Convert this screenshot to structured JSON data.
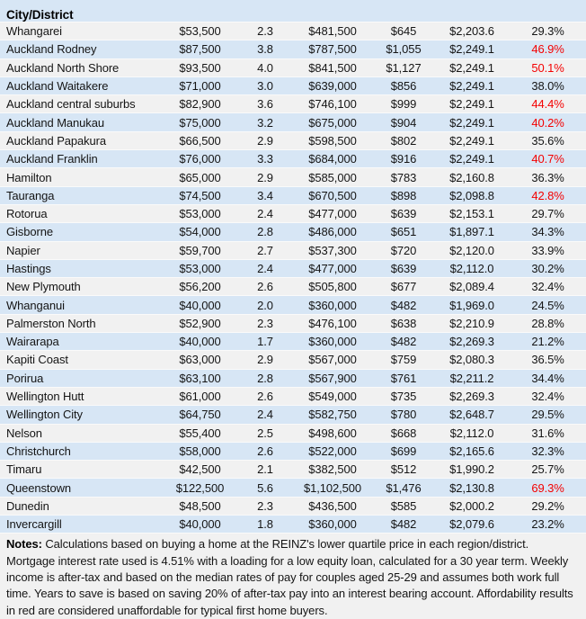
{
  "colors": {
    "row_blue": "#d7e6f5",
    "row_grey": "#f1f1f1",
    "unaffordable_red": "#f40000",
    "text": "#151515"
  },
  "chart_data": {
    "type": "table",
    "header": {
      "city_label": "City/District"
    },
    "rows": [
      {
        "city": "Whangarei",
        "values": [
          "$53,500",
          "2.3",
          "$481,500",
          "$645",
          "$2,203.6",
          "29.3%"
        ],
        "unaffordable": false
      },
      {
        "city": "Auckland Rodney",
        "values": [
          "$87,500",
          "3.8",
          "$787,500",
          "$1,055",
          "$2,249.1",
          "46.9%"
        ],
        "unaffordable": true
      },
      {
        "city": "Auckland North Shore",
        "values": [
          "$93,500",
          "4.0",
          "$841,500",
          "$1,127",
          "$2,249.1",
          "50.1%"
        ],
        "unaffordable": true
      },
      {
        "city": "Auckland Waitakere",
        "values": [
          "$71,000",
          "3.0",
          "$639,000",
          "$856",
          "$2,249.1",
          "38.0%"
        ],
        "unaffordable": false
      },
      {
        "city": "Auckland central suburbs",
        "values": [
          "$82,900",
          "3.6",
          "$746,100",
          "$999",
          "$2,249.1",
          "44.4%"
        ],
        "unaffordable": true
      },
      {
        "city": "Auckland Manukau",
        "values": [
          "$75,000",
          "3.2",
          "$675,000",
          "$904",
          "$2,249.1",
          "40.2%"
        ],
        "unaffordable": true
      },
      {
        "city": "Auckland Papakura",
        "values": [
          "$66,500",
          "2.9",
          "$598,500",
          "$802",
          "$2,249.1",
          "35.6%"
        ],
        "unaffordable": false
      },
      {
        "city": "Auckland Franklin",
        "values": [
          "$76,000",
          "3.3",
          "$684,000",
          "$916",
          "$2,249.1",
          "40.7%"
        ],
        "unaffordable": true
      },
      {
        "city": "Hamilton",
        "values": [
          "$65,000",
          "2.9",
          "$585,000",
          "$783",
          "$2,160.8",
          "36.3%"
        ],
        "unaffordable": false
      },
      {
        "city": "Tauranga",
        "values": [
          "$74,500",
          "3.4",
          "$670,500",
          "$898",
          "$2,098.8",
          "42.8%"
        ],
        "unaffordable": true
      },
      {
        "city": "Rotorua",
        "values": [
          "$53,000",
          "2.4",
          "$477,000",
          "$639",
          "$2,153.1",
          "29.7%"
        ],
        "unaffordable": false
      },
      {
        "city": "Gisborne",
        "values": [
          "$54,000",
          "2.8",
          "$486,000",
          "$651",
          "$1,897.1",
          "34.3%"
        ],
        "unaffordable": false
      },
      {
        "city": "Napier",
        "values": [
          "$59,700",
          "2.7",
          "$537,300",
          "$720",
          "$2,120.0",
          "33.9%"
        ],
        "unaffordable": false
      },
      {
        "city": "Hastings",
        "values": [
          "$53,000",
          "2.4",
          "$477,000",
          "$639",
          "$2,112.0",
          "30.2%"
        ],
        "unaffordable": false
      },
      {
        "city": "New Plymouth",
        "values": [
          "$56,200",
          "2.6",
          "$505,800",
          "$677",
          "$2,089.4",
          "32.4%"
        ],
        "unaffordable": false
      },
      {
        "city": "Whanganui",
        "values": [
          "$40,000",
          "2.0",
          "$360,000",
          "$482",
          "$1,969.0",
          "24.5%"
        ],
        "unaffordable": false
      },
      {
        "city": "Palmerston North",
        "values": [
          "$52,900",
          "2.3",
          "$476,100",
          "$638",
          "$2,210.9",
          "28.8%"
        ],
        "unaffordable": false
      },
      {
        "city": "Wairarapa",
        "values": [
          "$40,000",
          "1.7",
          "$360,000",
          "$482",
          "$2,269.3",
          "21.2%"
        ],
        "unaffordable": false
      },
      {
        "city": "Kapiti Coast",
        "values": [
          "$63,000",
          "2.9",
          "$567,000",
          "$759",
          "$2,080.3",
          "36.5%"
        ],
        "unaffordable": false
      },
      {
        "city": "Porirua",
        "values": [
          "$63,100",
          "2.8",
          "$567,900",
          "$761",
          "$2,211.2",
          "34.4%"
        ],
        "unaffordable": false
      },
      {
        "city": "Wellington Hutt",
        "values": [
          "$61,000",
          "2.6",
          "$549,000",
          "$735",
          "$2,269.3",
          "32.4%"
        ],
        "unaffordable": false
      },
      {
        "city": "Wellington City",
        "values": [
          "$64,750",
          "2.4",
          "$582,750",
          "$780",
          "$2,648.7",
          "29.5%"
        ],
        "unaffordable": false
      },
      {
        "city": "Nelson",
        "values": [
          "$55,400",
          "2.5",
          "$498,600",
          "$668",
          "$2,112.0",
          "31.6%"
        ],
        "unaffordable": false
      },
      {
        "city": "Christchurch",
        "values": [
          "$58,000",
          "2.6",
          "$522,000",
          "$699",
          "$2,165.6",
          "32.3%"
        ],
        "unaffordable": false
      },
      {
        "city": "Timaru",
        "values": [
          "$42,500",
          "2.1",
          "$382,500",
          "$512",
          "$1,990.2",
          "25.7%"
        ],
        "unaffordable": false
      },
      {
        "city": "Queenstown",
        "values": [
          "$122,500",
          "5.6",
          "$1,102,500",
          "$1,476",
          "$2,130.8",
          "69.3%"
        ],
        "unaffordable": true
      },
      {
        "city": "Dunedin",
        "values": [
          "$48,500",
          "2.3",
          "$436,500",
          "$585",
          "$2,000.2",
          "29.2%"
        ],
        "unaffordable": false
      },
      {
        "city": "Invercargill",
        "values": [
          "$40,000",
          "1.8",
          "$360,000",
          "$482",
          "$2,079.6",
          "23.2%"
        ],
        "unaffordable": false
      }
    ]
  },
  "notes": {
    "label": "Notes:",
    "text": " Calculations based on buying a home at the REINZ's lower quartile price in each region/district. Mortgage interest rate used is 4.51% with a loading for a low equity loan, calculated for a 30 year term. Weekly income is after-tax and based on the median rates of pay for couples aged 25-29 and assumes both work full time. Years to save is based on saving 20% of after-tax pay into an interest bearing account. Affordability results in red are considered unaffordable for typical first home buyers."
  }
}
